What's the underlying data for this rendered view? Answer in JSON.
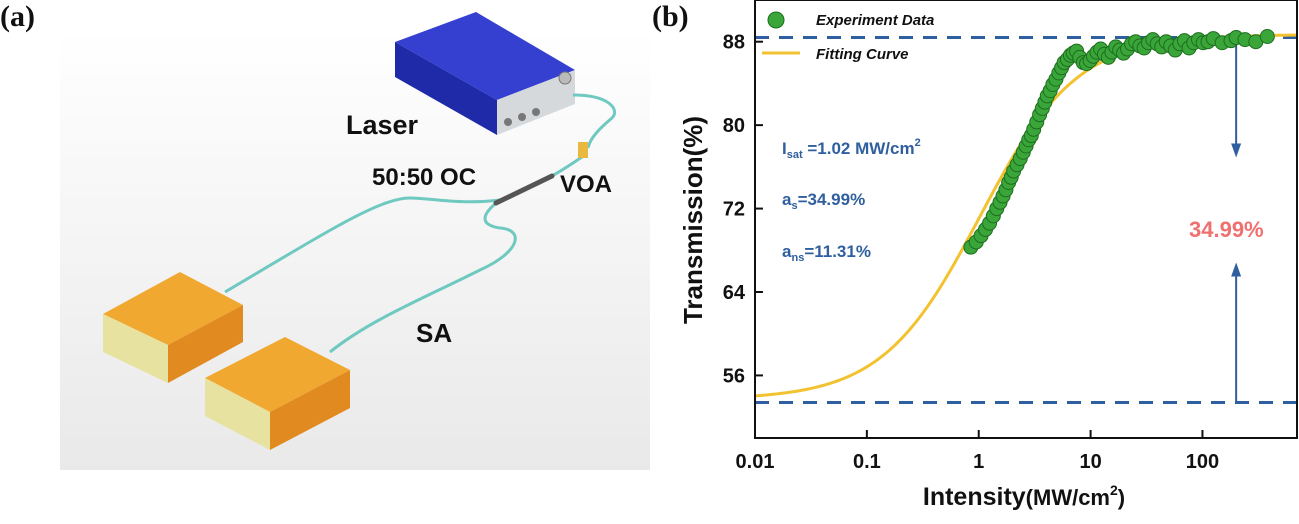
{
  "panels": {
    "a": "(a)",
    "b": "(b)"
  },
  "setup": {
    "laser": "Laser",
    "coupler": "50:50 OC",
    "voa": "VOA",
    "sa": "SA"
  },
  "colors": {
    "experiment": "#3aa63a",
    "fit": "#f2c230",
    "dashed": "#2f5f9e",
    "annotation_text": "#2f5f9e",
    "percent_label": "#f07070",
    "laser_blue": "#2a36c8",
    "box_orange": "#f0a030"
  },
  "chart_data": {
    "type": "scatter",
    "xscale": "log",
    "xlim": [
      0.01,
      700
    ],
    "ylim": [
      50,
      92
    ],
    "xticks": [
      0.01,
      0.1,
      1,
      10,
      100
    ],
    "xtick_labels": [
      "0.01",
      "0.1",
      "1",
      "10",
      "100"
    ],
    "yticks": [
      56,
      64,
      72,
      80,
      88
    ],
    "ytick_labels": [
      "56",
      "64",
      "72",
      "80",
      "88"
    ],
    "xlabel": "Intensity",
    "xlabel_unit": "(MW/cm",
    "xlabel_sup": "2",
    "xlabel_close": ")",
    "ylabel": "Transmission(%)",
    "legend": [
      {
        "label": "Experiment Data",
        "kind": "marker"
      },
      {
        "label": "Fitting Curve",
        "kind": "line"
      }
    ],
    "annotations": {
      "isat_prefix": "I",
      "isat_sub": "sat",
      "isat_value": " =1.02 MW/cm",
      "isat_sup": "2",
      "as_prefix": "a",
      "as_sub": "s",
      "as_value": "=34.99%",
      "ans_prefix": "a",
      "ans_sub": "ns",
      "ans_value": "=11.31%",
      "depth_label": "34.99%"
    },
    "reference_lines": [
      88.4,
      53.4
    ],
    "modulation_arrow_x": 200,
    "fit_params": {
      "isat": 1.02,
      "as": 34.99,
      "ans": 11.31
    },
    "series": [
      {
        "name": "Experiment Data",
        "points": [
          [
            0.85,
            68.3
          ],
          [
            0.95,
            68.8
          ],
          [
            1.05,
            69.4
          ],
          [
            1.15,
            70.0
          ],
          [
            1.25,
            70.6
          ],
          [
            1.35,
            71.3
          ],
          [
            1.45,
            72.0
          ],
          [
            1.55,
            72.6
          ],
          [
            1.65,
            73.2
          ],
          [
            1.75,
            73.8
          ],
          [
            1.85,
            74.5
          ],
          [
            1.95,
            75.0
          ],
          [
            2.05,
            75.6
          ],
          [
            2.2,
            76.2
          ],
          [
            2.35,
            76.8
          ],
          [
            2.5,
            77.4
          ],
          [
            2.65,
            78.0
          ],
          [
            2.8,
            78.6
          ],
          [
            2.95,
            79.0
          ],
          [
            3.1,
            79.6
          ],
          [
            3.3,
            80.3
          ],
          [
            3.5,
            81.0
          ],
          [
            3.7,
            81.6
          ],
          [
            3.9,
            82.2
          ],
          [
            4.1,
            82.8
          ],
          [
            4.35,
            83.3
          ],
          [
            4.6,
            83.9
          ],
          [
            4.9,
            84.4
          ],
          [
            5.2,
            85.0
          ],
          [
            5.5,
            85.5
          ],
          [
            5.8,
            86.0
          ],
          [
            6.2,
            86.3
          ],
          [
            6.6,
            86.7
          ],
          [
            7.0,
            86.9
          ],
          [
            7.5,
            87.1
          ],
          [
            8.0,
            86.5
          ],
          [
            8.6,
            86.0
          ],
          [
            9.2,
            85.9
          ],
          [
            9.9,
            86.2
          ],
          [
            10.6,
            86.6
          ],
          [
            11.4,
            87.0
          ],
          [
            12.3,
            87.3
          ],
          [
            13.3,
            86.8
          ],
          [
            14.4,
            86.5
          ],
          [
            15.5,
            87.0
          ],
          [
            16.8,
            87.5
          ],
          [
            18.2,
            87.2
          ],
          [
            19.7,
            86.9
          ],
          [
            21.4,
            87.3
          ],
          [
            23.2,
            87.8
          ],
          [
            25.3,
            88.0
          ],
          [
            27.6,
            87.6
          ],
          [
            30.1,
            87.4
          ],
          [
            32.9,
            87.9
          ],
          [
            36.0,
            88.2
          ],
          [
            39.4,
            87.8
          ],
          [
            43.2,
            87.5
          ],
          [
            47.4,
            88.0
          ],
          [
            52.0,
            87.6
          ],
          [
            57.1,
            87.2
          ],
          [
            62.8,
            87.8
          ],
          [
            69.0,
            88.1
          ],
          [
            75.9,
            87.4
          ],
          [
            83.6,
            87.9
          ],
          [
            92.2,
            88.2
          ],
          [
            101.5,
            87.9
          ],
          [
            112,
            88.0
          ],
          [
            125,
            88.3
          ],
          [
            150,
            87.9
          ],
          [
            180,
            88.1
          ],
          [
            200,
            88.4
          ],
          [
            240,
            88.2
          ],
          [
            300,
            88.0
          ],
          [
            380,
            88.5
          ]
        ]
      }
    ]
  }
}
